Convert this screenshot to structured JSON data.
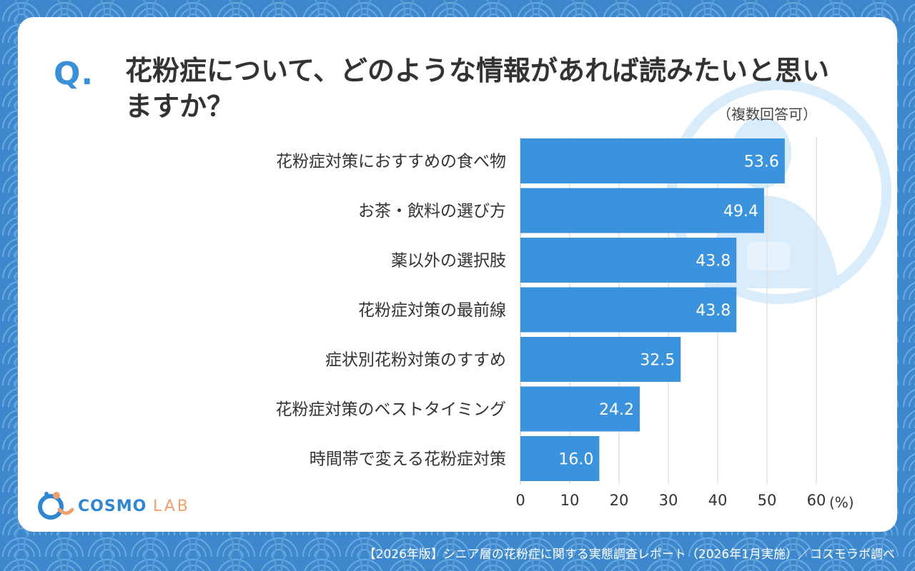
{
  "question": {
    "mark": "Q.",
    "text": "花粉症について、どのような情報があれば読みたいと思いますか？",
    "note": "（複数回答可）"
  },
  "chart_data": {
    "type": "bar",
    "orientation": "horizontal",
    "categories": [
      "花粉症対策におすすめの食べ物",
      "お茶・飲料の選び方",
      "薬以外の選択肢",
      "花粉症対策の最前線",
      "症状別花粉対策のすすめ",
      "花粉症対策のベストタイミング",
      "時間帯で変える花粉症対策"
    ],
    "values": [
      53.6,
      49.4,
      43.8,
      43.8,
      32.5,
      24.2,
      16.0
    ],
    "value_labels": [
      "53.6",
      "49.4",
      "43.8",
      "43.8",
      "32.5",
      "24.2",
      "16.0"
    ],
    "xlim": [
      0,
      60
    ],
    "xticks": [
      "0",
      "10",
      "20",
      "30",
      "40",
      "50",
      "60"
    ],
    "unit_label": "(%)",
    "grid": true,
    "bar_color": "#3a93dc"
  },
  "logo": {
    "main": "COSMO",
    "sub": "LAB"
  },
  "footer": "【2026年版】シニア層の花粉症に関する実態調査レポート（2026年1月実施）／コスモラボ調べ",
  "colors": {
    "background": "#3d88cc",
    "card": "#ffffff",
    "accent": "#3a8fd8",
    "logo_accent": "#f0a06a"
  }
}
